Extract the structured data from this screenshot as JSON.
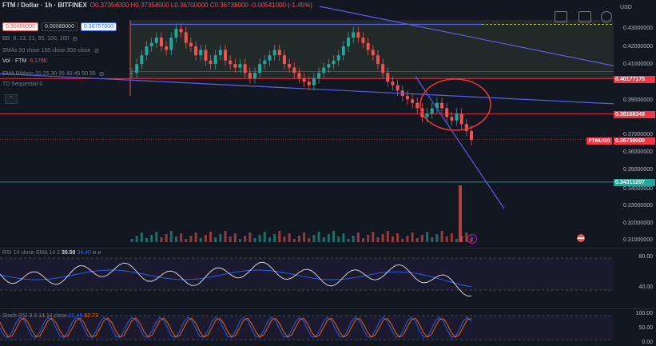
{
  "header": {
    "title": "FTM / Dollar · 1h · BITFINEX",
    "ohlc": {
      "o": "O0.37354000",
      "h": "H0.37354000",
      "l": "L0.36700000",
      "c": "C0.36738000",
      "chg": "-0.00541000 (-1.45%)"
    },
    "bid": "0.36668000",
    "spread": "0.00089000",
    "ask": "0.36757000",
    "currency": "USD"
  },
  "indicators": [
    {
      "label": "BB",
      "values": "8, 13, 21, 55, 100, 200"
    },
    {
      "label": "SMAs 50 close 100 close 200 close",
      "values": ""
    },
    {
      "label": "Vol · FTM",
      "values": "6.178K"
    },
    {
      "label": "EMA Ribbon 20 25 30 35 40 45 50 55",
      "values": ""
    },
    {
      "label": "TD Sequential 0",
      "values": ""
    }
  ],
  "price_axis": [
    "0.43000000",
    "0.42000000",
    "0.41000000",
    "0.39000000",
    "0.37000000",
    "0.36000000",
    "0.35000000",
    "0.34000000",
    "0.33000000",
    "0.32000000",
    "0.31000000"
  ],
  "price_tags": [
    {
      "text": "0.40177175",
      "color": "red"
    },
    {
      "text": "0.38168348",
      "color": "red"
    },
    {
      "text": "0.36738000",
      "color": "red"
    },
    {
      "text": "0.34313207",
      "color": "teal"
    }
  ],
  "symbol_tag": "FTMUSD",
  "rsi": {
    "label": "RSI 14 close SMA 14 2",
    "value1": "30.50",
    "value2": "34.40",
    "extra": "ø ø",
    "axis": [
      "80.00",
      "40.00"
    ]
  },
  "stoch": {
    "label": "Stoch RSI 3 3 14 14 close",
    "value1": "31.46",
    "value2": "62.73",
    "axis": [
      "100.00",
      "50.00",
      "0.00"
    ]
  },
  "colors": {
    "bull": "#26a69a",
    "bear": "#ef5350",
    "trendline": "#5b5fe0",
    "circle": "#e53935",
    "background": "#131722"
  },
  "chart_data": {
    "type": "candlestick",
    "symbol": "FTMUSD",
    "close_series": [
      0.405,
      0.41,
      0.415,
      0.42,
      0.422,
      0.425,
      0.42,
      0.418,
      0.425,
      0.43,
      0.428,
      0.422,
      0.42,
      0.415,
      0.418,
      0.412,
      0.41,
      0.415,
      0.418,
      0.412,
      0.41,
      0.408,
      0.41,
      0.405,
      0.402,
      0.405,
      0.41,
      0.412,
      0.415,
      0.418,
      0.415,
      0.41,
      0.408,
      0.405,
      0.402,
      0.4,
      0.398,
      0.402,
      0.405,
      0.408,
      0.41,
      0.412,
      0.415,
      0.42,
      0.425,
      0.428,
      0.425,
      0.422,
      0.418,
      0.415,
      0.41,
      0.405,
      0.4,
      0.398,
      0.395,
      0.392,
      0.39,
      0.388,
      0.385,
      0.38,
      0.382,
      0.385,
      0.388,
      0.385,
      0.38,
      0.378,
      0.382,
      0.376,
      0.372,
      0.367
    ],
    "levels": [
      0.40177175,
      0.38168348,
      0.34313207
    ],
    "last": 0.36738
  }
}
